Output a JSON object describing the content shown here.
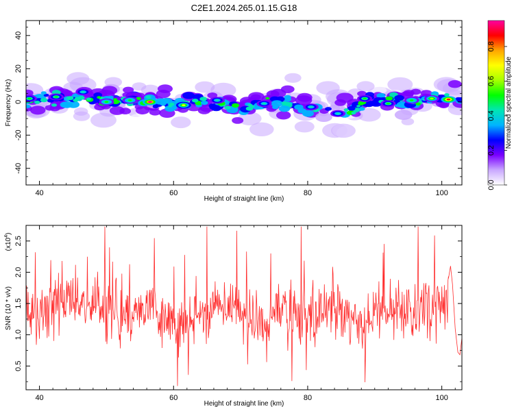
{
  "title": "C2E1.2024.265.01.15.G18",
  "chart_data": [
    {
      "type": "heatmap",
      "xlabel": "Height of straight line (km)",
      "ylabel": "Frequency (Hz)",
      "xlim": [
        38,
        103
      ],
      "ylim": [
        -50,
        49
      ],
      "xticks": [
        40,
        60,
        80,
        100
      ],
      "yticks": [
        -40,
        -20,
        0,
        20,
        40
      ],
      "colorbar": {
        "label": "Normalized spectral amplitude",
        "range": [
          0.0,
          0.95
        ],
        "ticks": [
          "0.0",
          "0.2",
          "0.4",
          "0.6",
          "0.8"
        ],
        "colors": [
          "#ffffff",
          "#c9a8ff",
          "#7a00ff",
          "#0000ff",
          "#00b4ff",
          "#00e6b4",
          "#00ff00",
          "#a6ff00",
          "#ffff00",
          "#ffa500",
          "#ff0000",
          "#ff00a0"
        ]
      },
      "band_center_hz": [
        {
          "x": 38,
          "y": 1
        },
        {
          "x": 41,
          "y": 2
        },
        {
          "x": 44,
          "y": 1
        },
        {
          "x": 46,
          "y": 3
        },
        {
          "x": 48,
          "y": 3
        },
        {
          "x": 50,
          "y": 0
        },
        {
          "x": 55,
          "y": 1
        },
        {
          "x": 60,
          "y": -1
        },
        {
          "x": 65,
          "y": 0
        },
        {
          "x": 70,
          "y": -4
        },
        {
          "x": 75,
          "y": 1
        },
        {
          "x": 80,
          "y": -3
        },
        {
          "x": 83,
          "y": -5
        },
        {
          "x": 86,
          "y": -6
        },
        {
          "x": 89,
          "y": 1
        },
        {
          "x": 95,
          "y": 0
        },
        {
          "x": 100,
          "y": 2
        },
        {
          "x": 103,
          "y": 2
        }
      ],
      "band_halfwidth_hz": 7,
      "peaks": [
        {
          "x": 56.5,
          "y": 0,
          "amp": 0.95
        },
        {
          "x": 101,
          "y": 1.5,
          "amp": 0.9
        },
        {
          "x": 98.5,
          "y": 2,
          "amp": 0.6
        },
        {
          "x": 61.5,
          "y": -2,
          "amp": 0.65
        },
        {
          "x": 50,
          "y": 0,
          "amp": 0.55
        },
        {
          "x": 53.5,
          "y": 1,
          "amp": 0.55
        },
        {
          "x": 42.5,
          "y": 3,
          "amp": 0.5
        },
        {
          "x": 95.5,
          "y": 1,
          "amp": 0.55
        },
        {
          "x": 88.5,
          "y": 2,
          "amp": 0.5
        },
        {
          "x": 84.5,
          "y": -7,
          "amp": 0.45
        },
        {
          "x": 80.5,
          "y": -3,
          "amp": 0.4
        },
        {
          "x": 73.5,
          "y": -1,
          "amp": 0.4
        },
        {
          "x": 66.5,
          "y": 1,
          "amp": 0.4
        },
        {
          "x": 46.5,
          "y": 6,
          "amp": 0.45
        },
        {
          "x": 38.5,
          "y": 2,
          "amp": 0.5
        },
        {
          "x": 92,
          "y": -1,
          "amp": 0.5
        }
      ]
    },
    {
      "type": "line",
      "xlabel": "Height of straight line (km)",
      "ylabel": "SNR (10 * v/v)",
      "y_multiplier": "(x10",
      "y_multiplier_exp": "4",
      "y_multiplier_close": ")",
      "xlim": [
        38,
        103
      ],
      "ylim": [
        0.12,
        2.75
      ],
      "xticks": [
        40,
        60,
        80,
        100
      ],
      "yticks": [
        "0.5",
        "1.0",
        "1.5",
        "2.0",
        "2.5"
      ],
      "ytick_values": [
        0.5,
        1.0,
        1.5,
        2.0,
        2.5
      ],
      "color": "#ff2a2a",
      "mean": [
        {
          "x": 38,
          "y": 1.3
        },
        {
          "x": 42,
          "y": 1.4
        },
        {
          "x": 45,
          "y": 1.6
        },
        {
          "x": 48,
          "y": 1.5
        },
        {
          "x": 52,
          "y": 1.3
        },
        {
          "x": 56,
          "y": 1.45
        },
        {
          "x": 60,
          "y": 1.15
        },
        {
          "x": 64,
          "y": 1.3
        },
        {
          "x": 68,
          "y": 1.5
        },
        {
          "x": 72,
          "y": 1.2
        },
        {
          "x": 76,
          "y": 1.35
        },
        {
          "x": 80,
          "y": 1.3
        },
        {
          "x": 84,
          "y": 1.4
        },
        {
          "x": 88,
          "y": 1.2
        },
        {
          "x": 92,
          "y": 1.45
        },
        {
          "x": 96,
          "y": 1.35
        },
        {
          "x": 100,
          "y": 1.5
        },
        {
          "x": 101.5,
          "y": 1.6
        }
      ],
      "spread": 0.55,
      "tail": [
        {
          "x": 101.0,
          "y": 1.9
        },
        {
          "x": 101.3,
          "y": 2.1
        },
        {
          "x": 101.6,
          "y": 1.8
        },
        {
          "x": 102.0,
          "y": 1.1
        },
        {
          "x": 102.4,
          "y": 0.72
        },
        {
          "x": 102.7,
          "y": 0.68
        },
        {
          "x": 103.0,
          "y": 0.95
        }
      ]
    }
  ]
}
